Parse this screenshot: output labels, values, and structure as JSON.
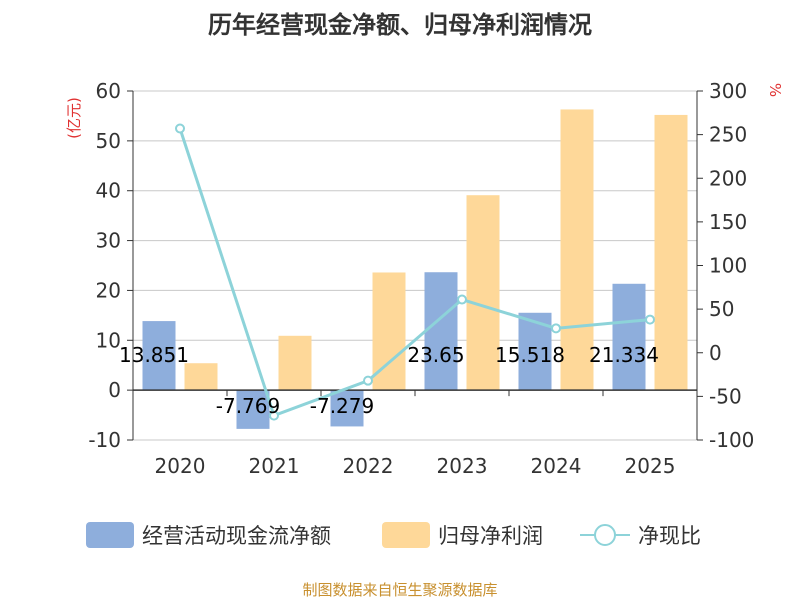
{
  "chart_data": {
    "type": "bar+line",
    "title": "历年经营现金净额、归母净利润情况",
    "categories": [
      "2020",
      "2021",
      "2022",
      "2023",
      "2024",
      "2025"
    ],
    "left_axis": {
      "unit_label": "(亿元)",
      "min": -10,
      "max": 60,
      "step": 10,
      "ticks": [
        "-10",
        "0",
        "10",
        "20",
        "30",
        "40",
        "50",
        "60"
      ]
    },
    "right_axis": {
      "unit_label": "%",
      "min": -100,
      "max": 300,
      "step": 50,
      "ticks": [
        "-100",
        "-50",
        "0",
        "50",
        "100",
        "150",
        "200",
        "250",
        "300"
      ]
    },
    "series": [
      {
        "name": "经营活动现金流净额",
        "kind": "bar",
        "axis": "left",
        "color": "#8eaedc",
        "values": [
          13.851,
          -7.769,
          -7.279,
          23.65,
          15.518,
          21.334
        ],
        "labels": [
          "13.851",
          "-7.769",
          "-7.279",
          "23.65",
          "15.518",
          "21.334"
        ]
      },
      {
        "name": "归母净利润",
        "kind": "bar",
        "axis": "left",
        "color": "#fed899",
        "values": [
          5.4,
          10.9,
          23.6,
          39.1,
          56.3,
          55.2
        ]
      },
      {
        "name": "净现比",
        "kind": "line",
        "axis": "right",
        "color": "#8dd3d9",
        "values": [
          257,
          -72,
          -32,
          61,
          28,
          38
        ]
      }
    ],
    "grid": true,
    "legend_position": "bottom"
  },
  "colors": {
    "axis_unit": "#e03131",
    "source": "#c8902f",
    "grid": "#c8c8c8",
    "text": "#333333"
  },
  "source_text": "制图数据来自恒生聚源数据库"
}
